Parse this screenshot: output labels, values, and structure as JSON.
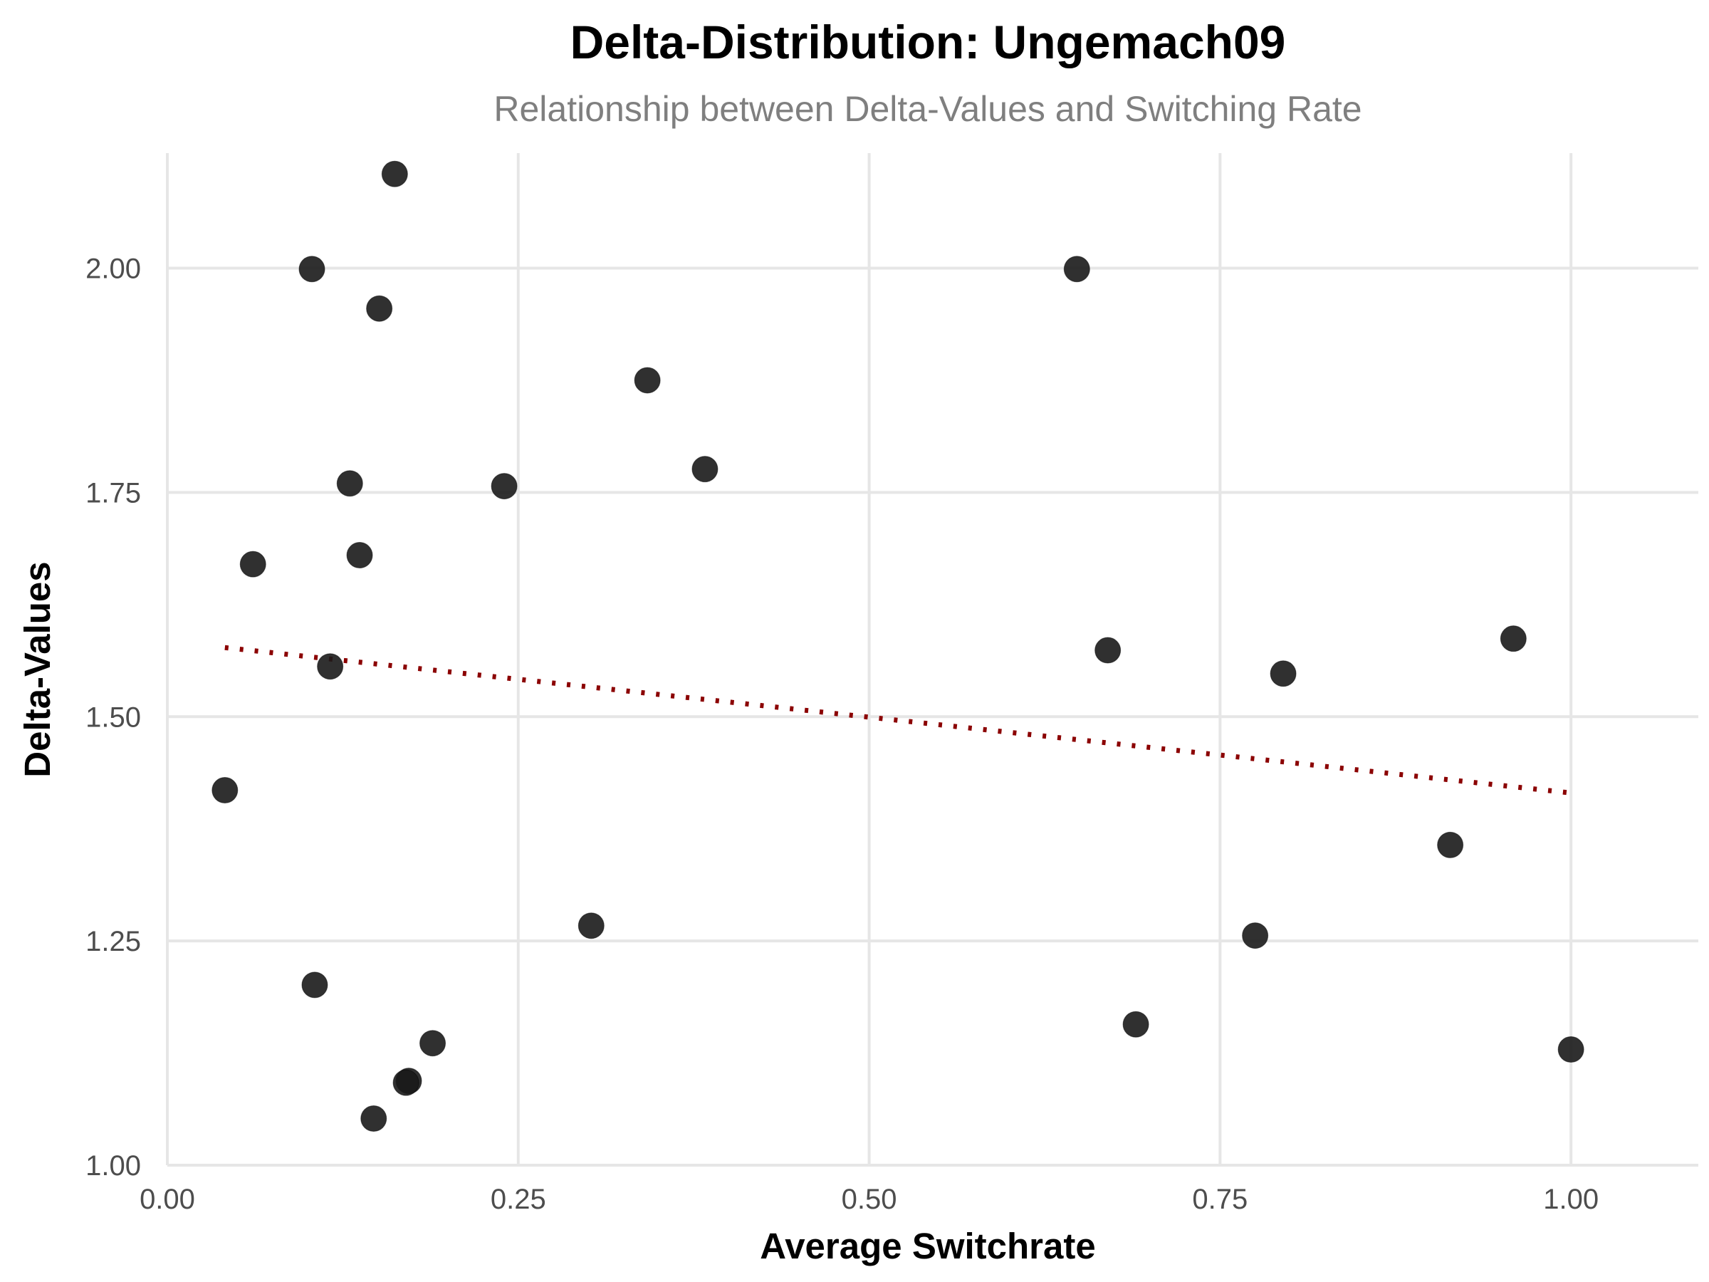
{
  "chart_data": {
    "type": "scatter",
    "title": "Delta-Distribution: Ungemach09",
    "subtitle": "Relationship between Delta-Values and Switching Rate",
    "xlabel": "Average Switchrate",
    "ylabel": "Delta-Values",
    "xlim": [
      0.0,
      1.04
    ],
    "ylim": [
      1.0,
      2.16
    ],
    "x_ticks": [
      0.0,
      0.25,
      0.5,
      0.75,
      1.0
    ],
    "x_tick_labels": [
      "0.00",
      "0.25",
      "0.50",
      "0.75",
      "1.00"
    ],
    "y_ticks": [
      1.0,
      1.25,
      1.5,
      1.75,
      2.0
    ],
    "y_tick_labels": [
      "1.00",
      "1.25",
      "1.50",
      "1.75",
      "2.00"
    ],
    "grid": true,
    "point_color": "#1a1a1a",
    "point_opacity": 0.9,
    "x": [
      0.162,
      0.103,
      0.151,
      0.342,
      0.383,
      0.13,
      0.24,
      0.061,
      0.137,
      0.116,
      0.041,
      0.302,
      0.105,
      0.189,
      0.172,
      0.17,
      0.147,
      0.648,
      0.67,
      0.795,
      0.959,
      0.914,
      0.775,
      0.69,
      1.0
    ],
    "y": [
      2.105,
      1.999,
      1.955,
      1.875,
      1.776,
      1.76,
      1.757,
      1.67,
      1.68,
      1.556,
      1.418,
      1.267,
      1.201,
      1.136,
      1.094,
      1.092,
      1.052,
      1.999,
      1.574,
      1.548,
      1.587,
      1.357,
      1.256,
      1.157,
      1.129
    ],
    "trend_line": {
      "style": "dotted",
      "color": "#8b0000",
      "x": [
        0.041,
        1.0
      ],
      "y": [
        1.577,
        1.415
      ]
    }
  }
}
